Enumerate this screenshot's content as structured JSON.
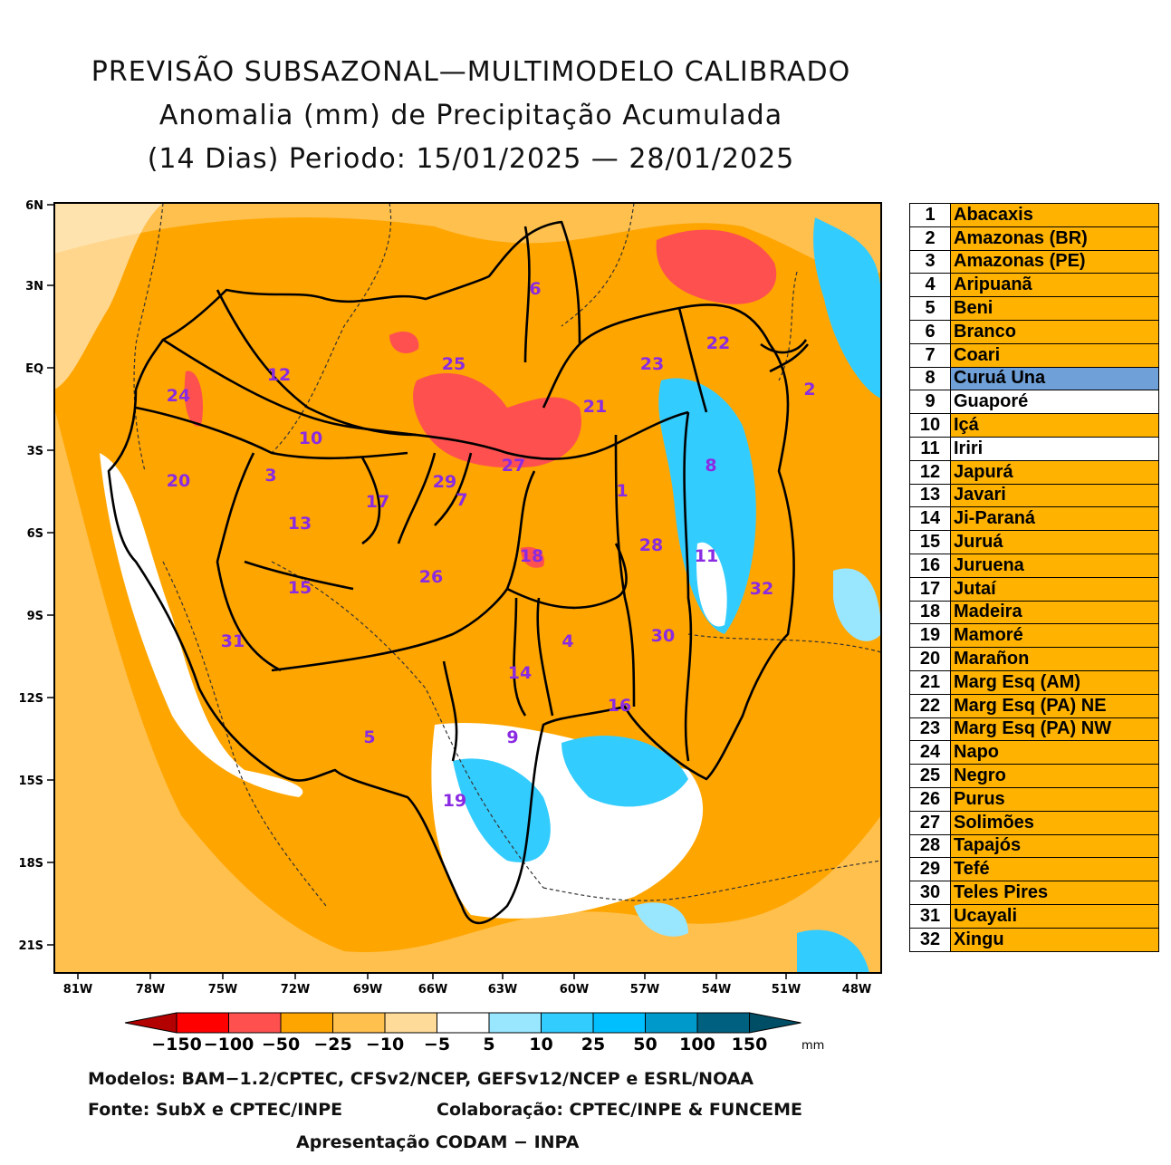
{
  "title": {
    "line1": "PREVISÃO SUBSAZONAL—MULTIMODELO CALIBRADO",
    "line2": "Anomalia (mm) de Precipitação Acumulada",
    "line3": "(14 Dias) Periodo: 15/01/2025 — 28/01/2025"
  },
  "map": {
    "lat_labels": [
      "6N",
      "3N",
      "EQ",
      "3S",
      "6S",
      "9S",
      "12S",
      "15S",
      "18S",
      "21S"
    ],
    "lon_labels": [
      "81W",
      "78W",
      "75W",
      "72W",
      "69W",
      "66W",
      "63W",
      "60W",
      "57W",
      "54W",
      "51W",
      "48W"
    ],
    "basin_labels": [
      "1",
      "2",
      "3",
      "4",
      "5",
      "6",
      "7",
      "8",
      "9",
      "10",
      "11",
      "12",
      "13",
      "14",
      "15",
      "16",
      "17",
      "18",
      "19",
      "20",
      "21",
      "22",
      "23",
      "24",
      "25",
      "26",
      "27",
      "28",
      "29",
      "30",
      "31",
      "32"
    ]
  },
  "colorbar": {
    "labels": [
      "−150",
      "−100",
      "−50",
      "−25",
      "−10",
      "−5",
      "5",
      "10",
      "25",
      "50",
      "100",
      "150"
    ],
    "unit": "mm",
    "colors": [
      "#b30000",
      "#ff0000",
      "#ff5050",
      "#ffa500",
      "#ffc04d",
      "#ffdb99",
      "#ffffff",
      "#99e6ff",
      "#33ccff",
      "#00bfff",
      "#0099cc",
      "#006080",
      "#004d66"
    ]
  },
  "basins": [
    {
      "num": "1",
      "name": "Abacaxis",
      "color": "#ffb300"
    },
    {
      "num": "2",
      "name": "Amazonas (BR)",
      "color": "#ffb300"
    },
    {
      "num": "3",
      "name": "Amazonas (PE)",
      "color": "#ffb300"
    },
    {
      "num": "4",
      "name": "Aripuanã",
      "color": "#ffb300"
    },
    {
      "num": "5",
      "name": "Beni",
      "color": "#ffb300"
    },
    {
      "num": "6",
      "name": "Branco",
      "color": "#ffb300"
    },
    {
      "num": "7",
      "name": "Coari",
      "color": "#ffb300"
    },
    {
      "num": "8",
      "name": "Curuá Una",
      "color": "#6fa0d8"
    },
    {
      "num": "9",
      "name": "Guaporé",
      "color": "#ffffff"
    },
    {
      "num": "10",
      "name": "Içá",
      "color": "#ffb300"
    },
    {
      "num": "11",
      "name": "Iriri",
      "color": "#ffffff"
    },
    {
      "num": "12",
      "name": "Japurá",
      "color": "#ffb300"
    },
    {
      "num": "13",
      "name": "Javari",
      "color": "#ffb300"
    },
    {
      "num": "14",
      "name": "Ji-Paraná",
      "color": "#ffb300"
    },
    {
      "num": "15",
      "name": "Juruá",
      "color": "#ffb300"
    },
    {
      "num": "16",
      "name": "Juruena",
      "color": "#ffb300"
    },
    {
      "num": "17",
      "name": "Jutaí",
      "color": "#ffb300"
    },
    {
      "num": "18",
      "name": "Madeira",
      "color": "#ffb300"
    },
    {
      "num": "19",
      "name": "Mamoré",
      "color": "#ffb300"
    },
    {
      "num": "20",
      "name": "Marañon",
      "color": "#ffb300"
    },
    {
      "num": "21",
      "name": "Marg Esq (AM)",
      "color": "#ffb300"
    },
    {
      "num": "22",
      "name": "Marg Esq (PA) NE",
      "color": "#ffb300"
    },
    {
      "num": "23",
      "name": "Marg Esq (PA) NW",
      "color": "#ffb300"
    },
    {
      "num": "24",
      "name": "Napo",
      "color": "#ffb300"
    },
    {
      "num": "25",
      "name": "Negro",
      "color": "#ffb300"
    },
    {
      "num": "26",
      "name": "Purus",
      "color": "#ffb300"
    },
    {
      "num": "27",
      "name": "Solimões",
      "color": "#ffb300"
    },
    {
      "num": "28",
      "name": "Tapajós",
      "color": "#ffb300"
    },
    {
      "num": "29",
      "name": "Tefé",
      "color": "#ffb300"
    },
    {
      "num": "30",
      "name": "Teles Pires",
      "color": "#ffb300"
    },
    {
      "num": "31",
      "name": "Ucayali",
      "color": "#ffb300"
    },
    {
      "num": "32",
      "name": "Xingu",
      "color": "#ffb300"
    }
  ],
  "footer": {
    "models": "Modelos: BAM−1.2/CPTEC, CFSv2/NCEP, GEFSv12/NCEP e ESRL/NOAA",
    "source": "Fonte: SubX e CPTEC/INPE",
    "collab": "Colaboração: CPTEC/INPE & FUNCEME",
    "presentation": "Apresentação CODAM − INPA"
  }
}
